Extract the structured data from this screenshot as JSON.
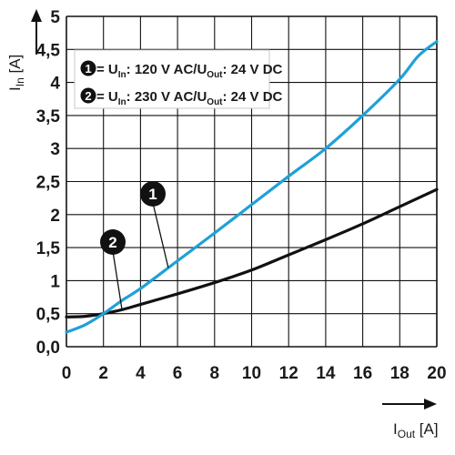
{
  "chart_data": {
    "type": "line",
    "xlabel_main": "I",
    "xlabel_sub": "Out",
    "xlabel_unit": " [A]",
    "ylabel_main": "I",
    "ylabel_sub": "In",
    "ylabel_unit": " [A]",
    "xlim": [
      0,
      20
    ],
    "ylim": [
      0,
      5
    ],
    "x_ticks": [
      0,
      2,
      4,
      6,
      8,
      10,
      12,
      14,
      16,
      18,
      20
    ],
    "x_tick_labels": [
      "0",
      "2",
      "4",
      "6",
      "8",
      "10",
      "12",
      "14",
      "16",
      "18",
      "20"
    ],
    "y_ticks": [
      0,
      0.5,
      1,
      1.5,
      2,
      2.5,
      3,
      3.5,
      4,
      4.5,
      5
    ],
    "y_tick_labels": [
      "0,0",
      "0,5",
      "1",
      "1,5",
      "2",
      "2,5",
      "3",
      "3,5",
      "4",
      "4,5",
      "5"
    ],
    "grid": true,
    "legend_position": "top-left",
    "series": [
      {
        "marker": "1",
        "color": "#1fa0d8",
        "legend_pre": "= U",
        "legend_sub1": "In",
        "legend_mid": ": 120 V AC/U",
        "legend_sub2": "Out",
        "legend_post": ": 24 V DC",
        "x": [
          0,
          1,
          2,
          3,
          4,
          6,
          8,
          10,
          12,
          14,
          16,
          18,
          19,
          20
        ],
        "y": [
          0.22,
          0.33,
          0.5,
          0.7,
          0.88,
          1.3,
          1.72,
          2.15,
          2.58,
          3.0,
          3.5,
          4.05,
          4.4,
          4.62
        ]
      },
      {
        "marker": "2",
        "color": "#111111",
        "legend_pre": "= U",
        "legend_sub1": "In",
        "legend_mid": ": 230 V AC/U",
        "legend_sub2": "Out",
        "legend_post": ": 24 V DC",
        "x": [
          0,
          1,
          2,
          3,
          4,
          6,
          8,
          10,
          12,
          14,
          16,
          18,
          20
        ],
        "y": [
          0.45,
          0.46,
          0.5,
          0.56,
          0.64,
          0.8,
          0.97,
          1.16,
          1.39,
          1.62,
          1.86,
          2.12,
          2.38
        ]
      }
    ]
  }
}
